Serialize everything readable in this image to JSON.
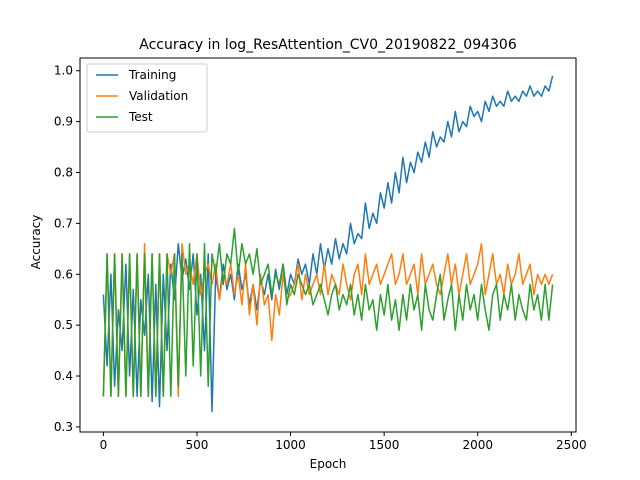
{
  "chart_data": {
    "type": "line",
    "title": "Accuracy in log_ResAttention_CV0_20190822_094306",
    "xlabel": "Epoch",
    "ylabel": "Accuracy",
    "xlim": [
      -125,
      2525
    ],
    "ylim": [
      0.29,
      1.025
    ],
    "xticks": [
      0,
      500,
      1000,
      1500,
      2000,
      2500
    ],
    "yticks": [
      0.3,
      0.4,
      0.5,
      0.6,
      0.7,
      0.8,
      0.9,
      1.0
    ],
    "grid": false,
    "legend": "top-left",
    "colors": {
      "Training": "#1f77b4",
      "Validation": "#ff7f0e",
      "Test": "#2ca02c"
    },
    "series": [
      {
        "name": "Training",
        "x": [
          0,
          20,
          40,
          60,
          80,
          100,
          120,
          140,
          160,
          180,
          200,
          220,
          240,
          260,
          280,
          300,
          320,
          340,
          360,
          380,
          400,
          420,
          440,
          460,
          480,
          500,
          520,
          540,
          560,
          580,
          600,
          620,
          640,
          660,
          680,
          700,
          720,
          740,
          760,
          780,
          800,
          820,
          840,
          860,
          880,
          900,
          920,
          940,
          960,
          980,
          1000,
          1020,
          1040,
          1060,
          1080,
          1100,
          1120,
          1140,
          1160,
          1180,
          1200,
          1220,
          1240,
          1260,
          1280,
          1300,
          1320,
          1340,
          1360,
          1380,
          1400,
          1420,
          1440,
          1460,
          1480,
          1500,
          1520,
          1540,
          1560,
          1580,
          1600,
          1620,
          1640,
          1660,
          1680,
          1700,
          1720,
          1740,
          1760,
          1780,
          1800,
          1820,
          1840,
          1860,
          1880,
          1900,
          1920,
          1940,
          1960,
          1980,
          2000,
          2020,
          2040,
          2060,
          2080,
          2100,
          2120,
          2140,
          2160,
          2180,
          2200,
          2220,
          2240,
          2260,
          2280,
          2300,
          2320,
          2340,
          2360,
          2380,
          2400
        ],
        "values": [
          0.56,
          0.42,
          0.6,
          0.38,
          0.53,
          0.45,
          0.62,
          0.4,
          0.57,
          0.36,
          0.55,
          0.48,
          0.6,
          0.35,
          0.58,
          0.34,
          0.6,
          0.45,
          0.62,
          0.55,
          0.66,
          0.59,
          0.63,
          0.57,
          0.64,
          0.52,
          0.6,
          0.45,
          0.64,
          0.33,
          0.6,
          0.55,
          0.62,
          0.57,
          0.6,
          0.55,
          0.62,
          0.57,
          0.6,
          0.54,
          0.58,
          0.53,
          0.59,
          0.56,
          0.6,
          0.55,
          0.61,
          0.57,
          0.62,
          0.56,
          0.6,
          0.58,
          0.63,
          0.6,
          0.62,
          0.58,
          0.64,
          0.6,
          0.66,
          0.61,
          0.65,
          0.62,
          0.67,
          0.63,
          0.66,
          0.64,
          0.7,
          0.66,
          0.68,
          0.67,
          0.74,
          0.69,
          0.72,
          0.7,
          0.76,
          0.73,
          0.78,
          0.74,
          0.8,
          0.76,
          0.83,
          0.78,
          0.82,
          0.8,
          0.84,
          0.82,
          0.86,
          0.83,
          0.88,
          0.85,
          0.87,
          0.86,
          0.9,
          0.87,
          0.92,
          0.88,
          0.9,
          0.89,
          0.93,
          0.91,
          0.92,
          0.9,
          0.94,
          0.92,
          0.95,
          0.93,
          0.94,
          0.93,
          0.96,
          0.94,
          0.95,
          0.94,
          0.96,
          0.95,
          0.97,
          0.95,
          0.96,
          0.95,
          0.97,
          0.96,
          0.99
        ]
      },
      {
        "name": "Validation",
        "x": [
          0,
          20,
          40,
          60,
          80,
          100,
          120,
          140,
          160,
          180,
          200,
          220,
          240,
          260,
          280,
          300,
          320,
          340,
          360,
          380,
          400,
          420,
          440,
          460,
          480,
          500,
          520,
          540,
          560,
          580,
          600,
          620,
          640,
          660,
          680,
          700,
          720,
          740,
          760,
          780,
          800,
          820,
          840,
          860,
          880,
          900,
          920,
          940,
          960,
          980,
          1000,
          1020,
          1040,
          1060,
          1080,
          1100,
          1120,
          1140,
          1160,
          1180,
          1200,
          1220,
          1240,
          1260,
          1280,
          1300,
          1320,
          1340,
          1360,
          1380,
          1400,
          1420,
          1440,
          1460,
          1480,
          1500,
          1520,
          1540,
          1560,
          1580,
          1600,
          1620,
          1640,
          1660,
          1680,
          1700,
          1720,
          1740,
          1760,
          1780,
          1800,
          1820,
          1840,
          1860,
          1880,
          1900,
          1920,
          1940,
          1960,
          1980,
          2000,
          2020,
          2040,
          2060,
          2080,
          2100,
          2120,
          2140,
          2160,
          2180,
          2200,
          2220,
          2240,
          2260,
          2280,
          2300,
          2320,
          2340,
          2360,
          2380,
          2400
        ],
        "values": [
          0.36,
          0.64,
          0.36,
          0.64,
          0.36,
          0.64,
          0.36,
          0.64,
          0.36,
          0.64,
          0.36,
          0.66,
          0.36,
          0.64,
          0.36,
          0.64,
          0.36,
          0.64,
          0.6,
          0.64,
          0.36,
          0.66,
          0.6,
          0.62,
          0.58,
          0.64,
          0.56,
          0.6,
          0.62,
          0.58,
          0.62,
          0.55,
          0.6,
          0.58,
          0.62,
          0.56,
          0.6,
          0.54,
          0.62,
          0.52,
          0.58,
          0.5,
          0.6,
          0.54,
          0.56,
          0.47,
          0.56,
          0.52,
          0.6,
          0.55,
          0.56,
          0.58,
          0.62,
          0.55,
          0.6,
          0.56,
          0.58,
          0.6,
          0.56,
          0.62,
          0.56,
          0.6,
          0.58,
          0.56,
          0.62,
          0.58,
          0.55,
          0.6,
          0.62,
          0.56,
          0.64,
          0.58,
          0.6,
          0.62,
          0.58,
          0.6,
          0.62,
          0.64,
          0.58,
          0.6,
          0.64,
          0.58,
          0.6,
          0.62,
          0.56,
          0.64,
          0.58,
          0.6,
          0.62,
          0.58,
          0.56,
          0.6,
          0.64,
          0.58,
          0.62,
          0.56,
          0.6,
          0.64,
          0.58,
          0.6,
          0.62,
          0.66,
          0.56,
          0.6,
          0.64,
          0.58,
          0.6,
          0.56,
          0.62,
          0.58,
          0.6,
          0.64,
          0.58,
          0.6,
          0.62,
          0.56,
          0.6,
          0.58,
          0.6,
          0.58,
          0.6
        ]
      },
      {
        "name": "Test",
        "x": [
          0,
          20,
          40,
          60,
          80,
          100,
          120,
          140,
          160,
          180,
          200,
          220,
          240,
          260,
          280,
          300,
          320,
          340,
          360,
          380,
          400,
          420,
          440,
          460,
          480,
          500,
          520,
          540,
          560,
          580,
          600,
          620,
          640,
          660,
          680,
          700,
          720,
          740,
          760,
          780,
          800,
          820,
          840,
          860,
          880,
          900,
          920,
          940,
          960,
          980,
          1000,
          1020,
          1040,
          1060,
          1080,
          1100,
          1120,
          1140,
          1160,
          1180,
          1200,
          1220,
          1240,
          1260,
          1280,
          1300,
          1320,
          1340,
          1360,
          1380,
          1400,
          1420,
          1440,
          1460,
          1480,
          1500,
          1520,
          1540,
          1560,
          1580,
          1600,
          1620,
          1640,
          1660,
          1680,
          1700,
          1720,
          1740,
          1760,
          1780,
          1800,
          1820,
          1840,
          1860,
          1880,
          1900,
          1920,
          1940,
          1960,
          1980,
          2000,
          2020,
          2040,
          2060,
          2080,
          2100,
          2120,
          2140,
          2160,
          2180,
          2200,
          2220,
          2240,
          2260,
          2280,
          2300,
          2320,
          2340,
          2360,
          2380,
          2400
        ],
        "values": [
          0.36,
          0.64,
          0.36,
          0.64,
          0.36,
          0.64,
          0.36,
          0.64,
          0.36,
          0.64,
          0.36,
          0.64,
          0.36,
          0.64,
          0.36,
          0.64,
          0.36,
          0.64,
          0.36,
          0.64,
          0.38,
          0.64,
          0.4,
          0.66,
          0.42,
          0.64,
          0.4,
          0.66,
          0.38,
          0.64,
          0.6,
          0.66,
          0.58,
          0.64,
          0.62,
          0.69,
          0.6,
          0.66,
          0.62,
          0.64,
          0.6,
          0.65,
          0.58,
          0.6,
          0.62,
          0.56,
          0.6,
          0.58,
          0.62,
          0.54,
          0.58,
          0.56,
          0.6,
          0.58,
          0.56,
          0.58,
          0.54,
          0.56,
          0.58,
          0.55,
          0.52,
          0.56,
          0.58,
          0.53,
          0.56,
          0.54,
          0.58,
          0.52,
          0.56,
          0.51,
          0.58,
          0.53,
          0.55,
          0.49,
          0.56,
          0.52,
          0.58,
          0.51,
          0.55,
          0.49,
          0.56,
          0.51,
          0.58,
          0.53,
          0.56,
          0.49,
          0.58,
          0.53,
          0.51,
          0.56,
          0.6,
          0.51,
          0.55,
          0.58,
          0.49,
          0.56,
          0.51,
          0.58,
          0.53,
          0.56,
          0.51,
          0.58,
          0.53,
          0.49,
          0.56,
          0.58,
          0.51,
          0.56,
          0.53,
          0.58,
          0.51,
          0.56,
          0.53,
          0.51,
          0.58,
          0.53,
          0.56,
          0.51,
          0.58,
          0.51,
          0.58
        ]
      }
    ]
  }
}
